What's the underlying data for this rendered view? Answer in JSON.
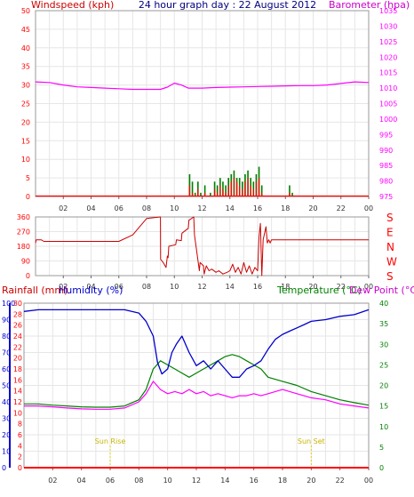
{
  "title": "24 hour graph day : 22 August 2012",
  "colors": {
    "wind": "#ff0000",
    "gust": "#008000",
    "baro": "#ff00ff",
    "direction": "#cc0000",
    "rain": "#ff0000",
    "humidity": "#0000cc",
    "temp": "#008000",
    "dew": "#ff00ff",
    "sun": "#e0d000",
    "grid": "#e6e6e6",
    "title": "#000080"
  },
  "chart_data": [
    {
      "type": "line",
      "name": "wind-baro",
      "left_axis_label": "Windspeed (kph)",
      "right_axis_label": "Barometer (hpa)",
      "left_ylim": [
        0,
        50
      ],
      "left_ticks": [
        0,
        5,
        10,
        15,
        20,
        25,
        30,
        35,
        40,
        45,
        50
      ],
      "right_ylim": [
        975,
        1035
      ],
      "right_ticks": [
        975,
        980,
        985,
        990,
        995,
        1000,
        1005,
        1010,
        1015,
        1020,
        1025,
        1030,
        1035
      ],
      "x_ticks": [
        "02",
        "04",
        "06",
        "08",
        "10",
        "12",
        "14",
        "16",
        "18",
        "20",
        "22",
        "00"
      ],
      "barometer": {
        "x": [
          0,
          1,
          2,
          3,
          4,
          5,
          6,
          7,
          8,
          9,
          9.5,
          10,
          10.5,
          11,
          12,
          13,
          14,
          15,
          16,
          17,
          18,
          19,
          20,
          21,
          22,
          23,
          24
        ],
        "y": [
          1012,
          1011.8,
          1011,
          1010.4,
          1010.2,
          1010,
          1009.8,
          1009.6,
          1009.6,
          1009.6,
          1010.3,
          1011.6,
          1011,
          1010,
          1010,
          1010.2,
          1010.3,
          1010.4,
          1010.5,
          1010.6,
          1010.7,
          1010.8,
          1010.8,
          1011,
          1011.5,
          1012,
          1011.8
        ]
      },
      "windspeed": {
        "x": [
          11.1,
          11.3,
          11.5,
          11.7,
          11.9,
          12.2,
          12.6,
          12.9,
          13.1,
          13.3,
          13.5,
          13.7,
          13.9,
          14.1,
          14.3,
          14.5,
          14.7,
          14.9,
          15.1,
          15.3,
          15.5,
          15.7,
          15.9,
          16.1,
          16.3,
          18.3,
          18.5
        ],
        "y": [
          3,
          1,
          0,
          2,
          0,
          1,
          0,
          2,
          1,
          3,
          2,
          1,
          3,
          4,
          5,
          4,
          3,
          2,
          4,
          5,
          3,
          2,
          4,
          5,
          1,
          1,
          0
        ]
      },
      "gust": {
        "x": [
          11.1,
          11.3,
          11.5,
          11.7,
          11.9,
          12.2,
          12.6,
          12.9,
          13.1,
          13.3,
          13.5,
          13.7,
          13.9,
          14.1,
          14.3,
          14.5,
          14.7,
          14.9,
          15.1,
          15.3,
          15.5,
          15.7,
          15.9,
          16.1,
          16.3,
          18.3,
          18.5
        ],
        "y": [
          6,
          4,
          1,
          4,
          1,
          3,
          1,
          4,
          3,
          5,
          4,
          3,
          5,
          6,
          7,
          5,
          5,
          4,
          6,
          7,
          5,
          4,
          6,
          8,
          3,
          3,
          1
        ]
      }
    },
    {
      "type": "line",
      "name": "wind-direction",
      "right_labels": [
        "S",
        "E",
        "N",
        "W",
        "S"
      ],
      "left_ylim": [
        0,
        360
      ],
      "left_ticks": [
        0,
        90,
        180,
        270,
        360
      ],
      "direction": {
        "x": [
          0,
          0.05,
          0.4,
          0.6,
          1,
          2,
          3,
          4,
          5,
          6,
          7,
          8,
          9,
          9.01,
          9.2,
          9.4,
          9.5,
          9.55,
          9.6,
          10.1,
          10.15,
          10.5,
          10.55,
          11,
          11.05,
          11.4,
          11.45,
          11.8,
          11.85,
          12.1,
          12.15,
          12.3,
          12.5,
          12.7,
          13,
          13.2,
          13.5,
          13.8,
          14,
          14.2,
          14.4,
          14.6,
          14.8,
          15,
          15.2,
          15.4,
          15.6,
          15.8,
          16,
          16.1,
          16.2,
          16.3,
          16.4,
          16.6,
          16.7,
          16.8,
          16.9,
          17,
          17.1,
          18,
          19,
          20,
          21,
          22,
          23,
          24
        ],
        "y": [
          200,
          220,
          220,
          210,
          210,
          210,
          210,
          210,
          210,
          210,
          250,
          350,
          360,
          100,
          80,
          50,
          120,
          110,
          180,
          190,
          220,
          215,
          260,
          290,
          340,
          360,
          250,
          30,
          80,
          60,
          10,
          60,
          30,
          40,
          20,
          30,
          10,
          20,
          30,
          70,
          20,
          50,
          10,
          80,
          20,
          60,
          10,
          50,
          30,
          240,
          320,
          0,
          220,
          300,
          200,
          220,
          200,
          220,
          220,
          220,
          220,
          220,
          220,
          220,
          220,
          220
        ]
      }
    },
    {
      "type": "line",
      "name": "temp-hum",
      "left_axis_label": "Rainfall (mm)",
      "mid_axis_label": "Humidity (%)",
      "right_axis_label": "Temperature (°C)",
      "right2_axis_label": "Dew Point (°C)",
      "rain_ylim": [
        0,
        30
      ],
      "rain_ticks": [
        0,
        2,
        4,
        6,
        8,
        10,
        12,
        14,
        16,
        18,
        20,
        22,
        24,
        26,
        28,
        30
      ],
      "humidity_ylim": [
        0,
        100
      ],
      "humidity_ticks": [
        0,
        10,
        20,
        30,
        40,
        50,
        60,
        70,
        80,
        90,
        100
      ],
      "temp_ylim": [
        0,
        40
      ],
      "temp_ticks": [
        0,
        5,
        10,
        15,
        20,
        25,
        30,
        35,
        40
      ],
      "sun_rise": {
        "label": "Sun Rise",
        "x": 6
      },
      "sun_set": {
        "label": "Sun Set",
        "x": 20
      },
      "rainfall": {
        "x": [
          0,
          24
        ],
        "y": [
          0,
          0
        ]
      },
      "humidity": {
        "x": [
          0,
          1,
          2,
          3,
          4,
          5,
          6,
          7,
          8,
          8.5,
          9,
          9.3,
          9.6,
          10,
          10.3,
          10.6,
          11,
          11.5,
          12,
          12.5,
          13,
          13.5,
          14,
          14.5,
          15,
          15.5,
          16,
          16.5,
          17,
          17.5,
          18,
          18.5,
          19,
          19.5,
          20,
          21,
          22,
          23,
          24
        ],
        "y": [
          95,
          96,
          96,
          96,
          96,
          96,
          96,
          96,
          94,
          89,
          80,
          64,
          57,
          60,
          70,
          75,
          80,
          70,
          62,
          65,
          60,
          65,
          60,
          55,
          55,
          60,
          62,
          65,
          72,
          78,
          81,
          83,
          85,
          87,
          89,
          90,
          92,
          93,
          96
        ]
      },
      "temperature": {
        "x": [
          0,
          1,
          2,
          3,
          4,
          5,
          6,
          7,
          8,
          8.5,
          9,
          9.5,
          10,
          10.5,
          11,
          11.5,
          12,
          12.5,
          13,
          13.5,
          14,
          14.5,
          15,
          15.5,
          16,
          16.5,
          17,
          18,
          19,
          20,
          21,
          22,
          23,
          24
        ],
        "y": [
          15.5,
          15.5,
          15.2,
          15,
          14.8,
          14.7,
          14.7,
          15,
          16.5,
          19,
          24,
          26,
          25,
          24,
          23,
          22,
          23,
          24,
          25,
          26,
          27,
          27.5,
          27,
          26,
          25,
          24,
          22,
          21,
          20,
          18.5,
          17.5,
          16.5,
          15.8,
          15.2
        ]
      },
      "dew_point": {
        "x": [
          0,
          1,
          2,
          3,
          4,
          5,
          6,
          7,
          8,
          8.5,
          9,
          9.5,
          10,
          10.5,
          11,
          11.5,
          12,
          12.5,
          13,
          13.5,
          14,
          14.5,
          15,
          15.5,
          16,
          16.5,
          17,
          18,
          19,
          20,
          21,
          22,
          23,
          24
        ],
        "y": [
          15,
          15,
          14.8,
          14.5,
          14.3,
          14.2,
          14.2,
          14.5,
          16,
          18,
          21,
          19,
          18,
          18.5,
          18,
          19,
          18,
          18.5,
          17.5,
          18,
          17.5,
          17,
          17.5,
          17.5,
          18,
          17.5,
          18,
          19,
          18,
          17,
          16.5,
          15.5,
          15,
          14.5
        ]
      }
    }
  ]
}
